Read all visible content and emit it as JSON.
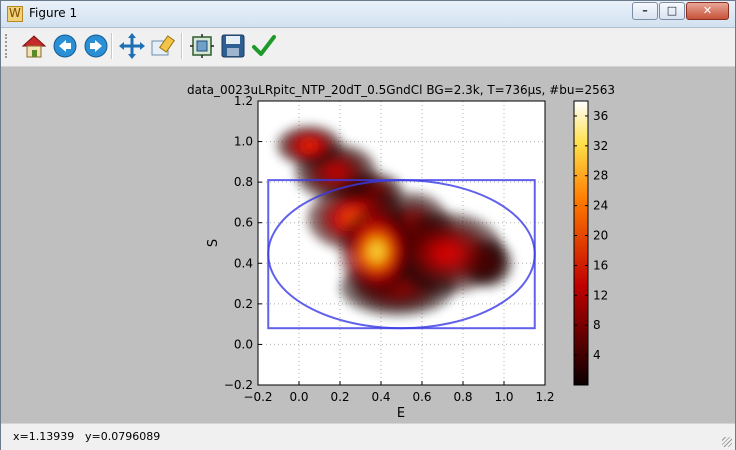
{
  "window": {
    "title": "Figure 1",
    "minimize_glyph": "–",
    "maximize_glyph": "□",
    "close_glyph": "✕"
  },
  "toolbar": {
    "items": [
      {
        "name": "home-button",
        "icon": "home-icon"
      },
      {
        "name": "back-button",
        "icon": "back-arrow-icon"
      },
      {
        "name": "forward-button",
        "icon": "forward-arrow-icon"
      },
      {
        "name": "pan-button",
        "icon": "move-icon"
      },
      {
        "name": "zoom-button",
        "icon": "zoom-rect-icon"
      },
      {
        "name": "subplots-button",
        "icon": "subplots-icon"
      },
      {
        "name": "save-button",
        "icon": "floppy-icon"
      },
      {
        "name": "apply-button",
        "icon": "checkmark-icon"
      }
    ]
  },
  "status": {
    "x": "x=1.13939",
    "y": "y=0.0796089"
  },
  "chart_data": {
    "type": "heatmap",
    "title": "data_0023uLRpitc_NTP_20dT_0.5GndCl BG=2.3k, T=736μs, #bu=2563",
    "xlabel": "E",
    "ylabel": "S",
    "xlim": [
      -0.2,
      1.2
    ],
    "ylim": [
      -0.2,
      1.2
    ],
    "xticks": [
      "−0.2",
      "0.0",
      "0.2",
      "0.4",
      "0.6",
      "0.8",
      "1.0",
      "1.2"
    ],
    "yticks": [
      "−0.2",
      "0.0",
      "0.2",
      "0.4",
      "0.6",
      "0.8",
      "1.0",
      "1.2"
    ],
    "grid": true,
    "colormap": "hot",
    "colorbar": {
      "min": 0,
      "max": 38,
      "ticks": [
        "4",
        "8",
        "12",
        "16",
        "20",
        "24",
        "28",
        "32",
        "36"
      ]
    },
    "clusters": [
      {
        "x": 0.38,
        "y": 0.46,
        "sx": 0.09,
        "sy": 0.11,
        "peak": 36
      },
      {
        "x": 0.28,
        "y": 0.62,
        "sx": 0.12,
        "sy": 0.08,
        "peak": 24
      },
      {
        "x": 0.05,
        "y": 0.98,
        "sx": 0.08,
        "sy": 0.05,
        "peak": 20
      },
      {
        "x": 0.18,
        "y": 0.85,
        "sx": 0.1,
        "sy": 0.07,
        "peak": 14
      },
      {
        "x": 0.72,
        "y": 0.45,
        "sx": 0.14,
        "sy": 0.1,
        "peak": 16
      },
      {
        "x": 0.55,
        "y": 0.55,
        "sx": 0.1,
        "sy": 0.1,
        "peak": 14
      },
      {
        "x": 0.48,
        "y": 0.28,
        "sx": 0.14,
        "sy": 0.07,
        "peak": 10
      },
      {
        "x": 0.92,
        "y": 0.4,
        "sx": 0.06,
        "sy": 0.06,
        "peak": 8
      },
      {
        "x": 0.35,
        "y": 0.75,
        "sx": 0.08,
        "sy": 0.05,
        "peak": 12
      }
    ],
    "overlays": {
      "rectangle": {
        "x0": -0.15,
        "x1": 1.15,
        "y0": 0.08,
        "y1": 0.81,
        "color": "#3a3ae6"
      },
      "ellipse": {
        "cx": 0.5,
        "cy": 0.445,
        "rx": 0.65,
        "ry": 0.365,
        "color": "#3a3ae6"
      }
    }
  }
}
